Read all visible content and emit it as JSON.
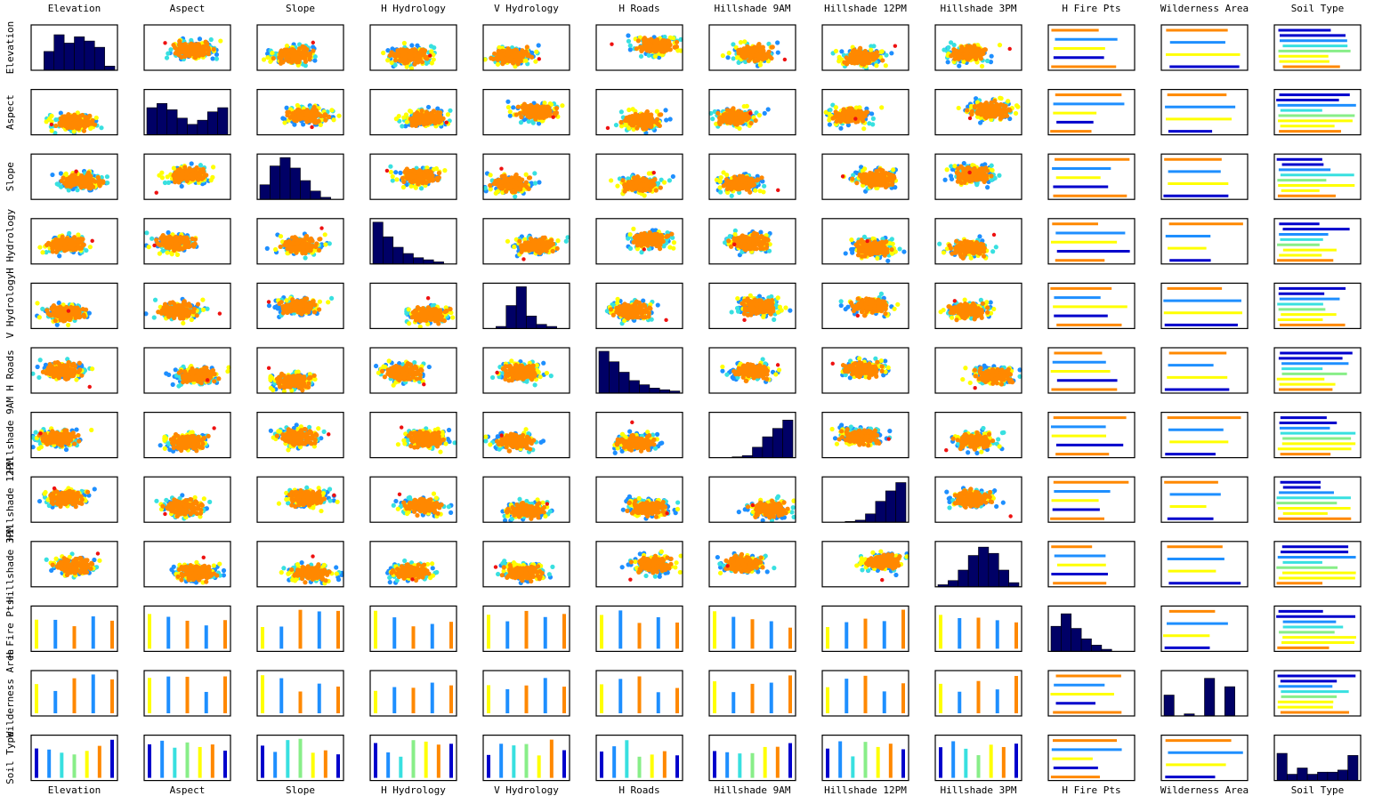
{
  "chart_data": {
    "type": "scatter",
    "title": "",
    "description_kind": "scatter-plot matrix with histograms on the diagonal",
    "variables": [
      "Elevation",
      "Aspect",
      "Slope",
      "H Hydrology",
      "V Hydrology",
      "H Roads",
      "Hillshade 9AM",
      "Hillshade 12PM",
      "Hillshade 3PM",
      "H Fire Pts",
      "Wilderness Area",
      "Soil Type"
    ],
    "row_labels": [
      "Elevation",
      "Aspect",
      "Slope",
      "H Hydrology",
      "V Hydrology",
      "H Roads",
      "Hillshade 9AM",
      "Hillshade 12PM",
      "Hillshade 3PM",
      "H Fire Pts",
      "Wilderness Area",
      "Soil Type"
    ],
    "top_labels": [
      "Elevation",
      "Aspect",
      "Slope",
      "H Hydrology",
      "V Hydrology",
      "H Roads",
      "Hillshade 9AM",
      "Hillshade 12PM",
      "Hillshade 3PM",
      "H Fire Pts",
      "Wilderness Area",
      "Soil Type"
    ],
    "bottom_labels": [
      "Elevation",
      "Aspect",
      "Slope",
      "H Hydrology",
      "V Hydrology",
      "H Roads",
      "Hillshade 9AM",
      "Hillshade 12PM",
      "Hillshade 3PM",
      "H Fire Pts",
      "Wilderness Area",
      "Soil Type"
    ],
    "grid": false,
    "legend": "none",
    "class_colors": [
      "#0000cc",
      "#1e8fff",
      "#38e0e0",
      "#88ee88",
      "#ffff00",
      "#ff8800",
      "#ee1111"
    ],
    "histogram_color": "#000066",
    "histograms": [
      [
        0,
        0.45,
        0.85,
        0.65,
        0.8,
        0.7,
        0.55,
        0.1
      ],
      [
        0.65,
        0.75,
        0.6,
        0.4,
        0.25,
        0.35,
        0.55,
        0.65
      ],
      [
        0.35,
        0.8,
        1.0,
        0.75,
        0.45,
        0.2,
        0.05,
        0
      ],
      [
        1.0,
        0.65,
        0.4,
        0.25,
        0.15,
        0.1,
        0.05,
        0
      ],
      [
        0,
        0.05,
        0.55,
        1.0,
        0.3,
        0.1,
        0.05,
        0
      ],
      [
        1.0,
        0.75,
        0.5,
        0.3,
        0.2,
        0.12,
        0.08,
        0.05
      ],
      [
        0,
        0,
        0.02,
        0.05,
        0.25,
        0.5,
        0.7,
        0.9
      ],
      [
        0,
        0,
        0.02,
        0.05,
        0.2,
        0.5,
        0.75,
        0.95
      ],
      [
        0.05,
        0.15,
        0.4,
        0.75,
        0.95,
        0.8,
        0.4,
        0.1
      ],
      [
        0.6,
        0.9,
        0.55,
        0.3,
        0.15,
        0.05,
        0,
        0
      ],
      [
        0.5,
        0,
        0.05,
        0,
        0.9,
        0,
        0.7,
        0
      ],
      [
        0.65,
        0.15,
        0.3,
        0.15,
        0.2,
        0.2,
        0.25,
        0.6
      ]
    ]
  }
}
